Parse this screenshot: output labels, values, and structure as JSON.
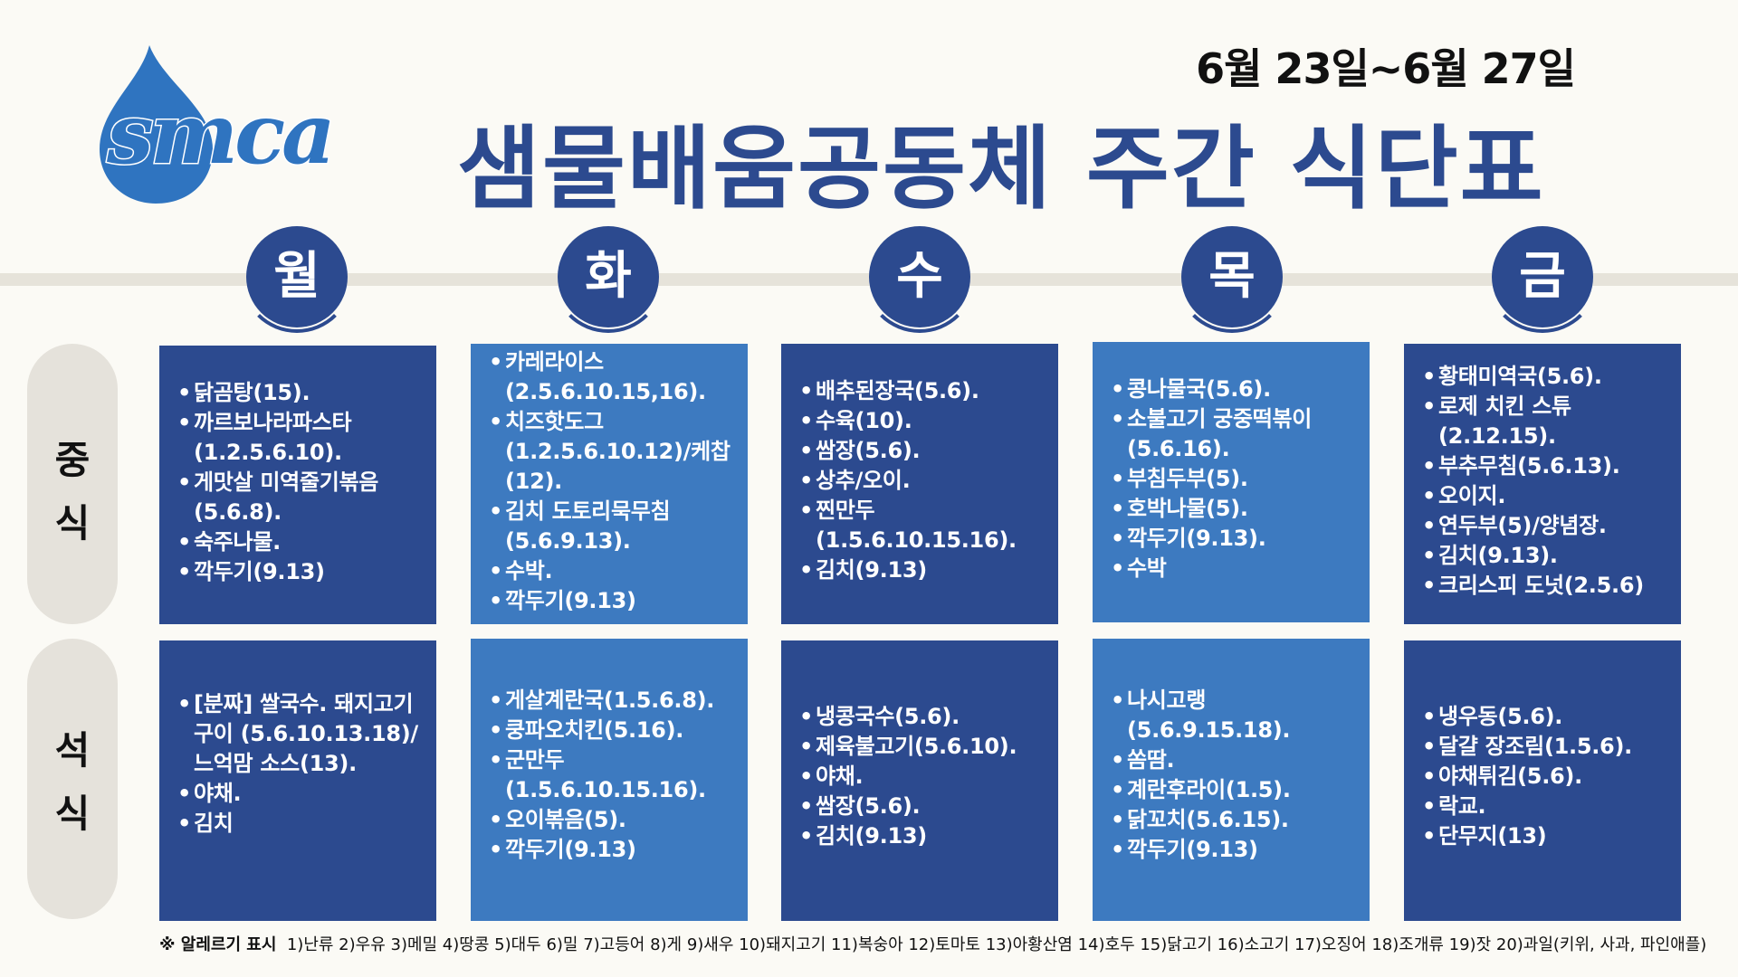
{
  "header": {
    "logo_text": "smca",
    "date_range": "6월 23일~6월 27일",
    "title": "샘물배움공동체 주간 식단표"
  },
  "days": [
    "월",
    "화",
    "수",
    "목",
    "금"
  ],
  "row_labels": {
    "lunch": [
      "중",
      "식"
    ],
    "dinner": [
      "석",
      "식"
    ]
  },
  "lunch": [
    [
      "닭곰탕(15).",
      "까르보나라파스타 (1.2.5.6.10).",
      "게맛살 미역줄기볶음 (5.6.8).",
      "숙주나물.",
      "깍두기(9.13)"
    ],
    [
      "카레라이스 (2.5.6.10.15,16).",
      "치즈핫도그 (1.2.5.6.10.12)/케찹 (12).",
      "김치 도토리묵무침 (5.6.9.13).",
      "수박.",
      "깍두기(9.13)"
    ],
    [
      "배추된장국(5.6).",
      "수육(10).",
      "쌈장(5.6).",
      "상추/오이.",
      "찐만두 (1.5.6.10.15.16).",
      "김치(9.13)"
    ],
    [
      "콩나물국(5.6).",
      "소불고기 궁중떡볶이 (5.6.16).",
      "부침두부(5).",
      "호박나물(5).",
      "깍두기(9.13).",
      "수박"
    ],
    [
      "황태미역국(5.6).",
      "로제 치킨 스튜 (2.12.15).",
      "부추무침(5.6.13).",
      "오이지.",
      "연두부(5)/양념장.",
      "김치(9.13).",
      "크리스피 도넛(2.5.6)"
    ]
  ],
  "dinner": [
    [
      "[분짜] 쌀국수. 돼지고기구이 (5.6.10.13.18)/느억맘 소스(13).",
      "야채.",
      "김치"
    ],
    [
      "게살계란국(1.5.6.8).",
      "쿵파오치킨(5.16).",
      "군만두 (1.5.6.10.15.16).",
      "오이볶음(5).",
      "깍두기(9.13)"
    ],
    [
      "냉콩국수(5.6).",
      "제육불고기(5.6.10).",
      "야채.",
      "쌈장(5.6).",
      "김치(9.13)"
    ],
    [
      "나시고랭 (5.6.9.15.18).",
      "쏨땀.",
      "계란후라이(1.5).",
      "닭꼬치(5.6.15).",
      "깍두기(9.13)"
    ],
    [
      "냉우동(5.6).",
      "달걀 장조림(1.5.6).",
      "야채튀김(5.6).",
      "락교.",
      "단무지(13)"
    ]
  ],
  "footer": {
    "label": "※ 알레르기 표시",
    "text": "1)난류 2)우유 3)메밀 4)땅콩 5)대두 6)밀 7)고등어 8)게 9)새우 10)돼지고기 11)복숭아 12)토마토 13)아황산염 14)호두 15)닭고기 16)소고기 17)오징어 18)조개류 19)잣 20)과일(키위, 사과, 파인애플)"
  },
  "colors": {
    "primary": "#2c4a8f",
    "light_box": "#3d7ac0",
    "logo_blue": "#2f74c0",
    "background": "#fbfaf5"
  }
}
